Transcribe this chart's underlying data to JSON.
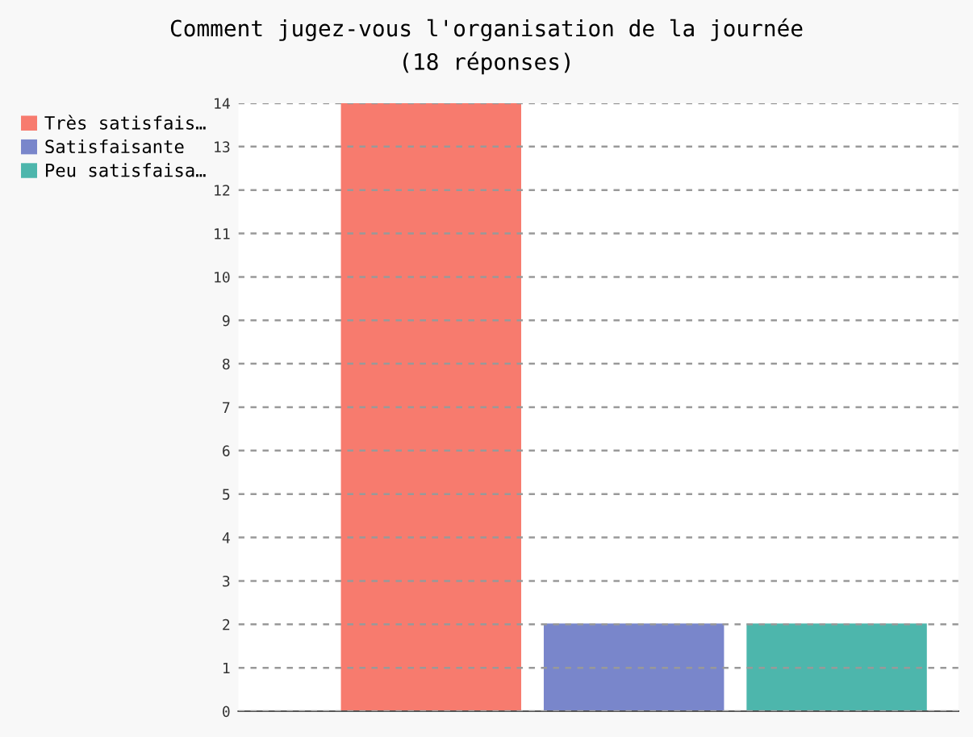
{
  "chart_data": {
    "type": "bar",
    "title": "Comment jugez-vous l'organisation de la journée\n(18 réponses)",
    "categories": [
      null,
      null,
      null
    ],
    "series": [
      {
        "name": "Très satisfais…",
        "color": "#f77b6e",
        "values": [
          14,
          null,
          null
        ]
      },
      {
        "name": "Satisfaisante",
        "color": "#7986cb",
        "values": [
          null,
          2,
          null
        ]
      },
      {
        "name": "Peu satisfaisa…",
        "color": "#4db6ac",
        "values": [
          null,
          null,
          2
        ]
      }
    ],
    "ylim": [
      0,
      14
    ],
    "yticks": [
      0,
      1,
      2,
      3,
      4,
      5,
      6,
      7,
      8,
      9,
      10,
      11,
      12,
      13,
      14
    ],
    "grid": "y",
    "legend": "left",
    "tick_labels": "y"
  }
}
